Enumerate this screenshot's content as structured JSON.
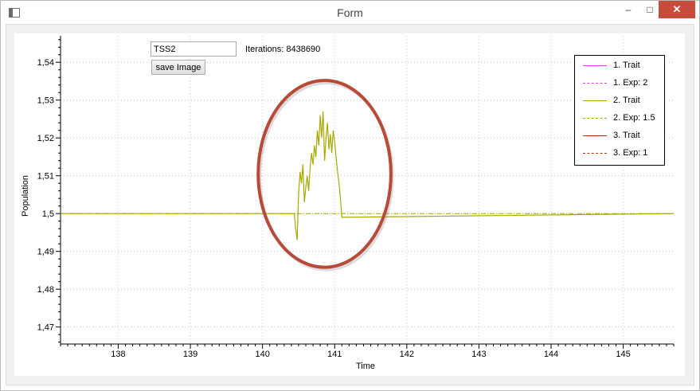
{
  "window": {
    "title": "Form",
    "minimize_glyph": "–",
    "maximize_glyph": "□",
    "close_glyph": "✕"
  },
  "controls": {
    "name_value": "TSS2",
    "iterations_text": "Iterations: 8438690",
    "save_label": "save Image"
  },
  "chart_data": {
    "type": "line",
    "xlabel": "Time",
    "ylabel": "Population",
    "xlim": [
      137.2,
      145.7
    ],
    "ylim": [
      1.4655,
      1.547
    ],
    "x_ticks": [
      138,
      139,
      140,
      141,
      142,
      143,
      144,
      145
    ],
    "y_ticks": [
      1.47,
      1.48,
      1.49,
      1.5,
      1.51,
      1.52,
      1.53,
      1.54
    ],
    "y_tick_labels": [
      "1,47",
      "1,48",
      "1,49",
      "1,5",
      "1,51",
      "1,52",
      "1,53",
      "1,54"
    ],
    "grid": true,
    "legend_position": "top-right",
    "series": [
      {
        "name": "1. Trait",
        "color": "#e040e0",
        "style": "solid"
      },
      {
        "name": "1. Exp: 2",
        "color": "#e040e0",
        "style": "dashdot"
      },
      {
        "name": "2. Trait",
        "color": "#a8a800",
        "style": "solid",
        "x": [
          137.2,
          140.44,
          140.46,
          140.48,
          140.5,
          140.52,
          140.54,
          140.56,
          140.58,
          140.6,
          140.62,
          140.64,
          140.66,
          140.68,
          140.7,
          140.72,
          140.74,
          140.76,
          140.78,
          140.8,
          140.82,
          140.84,
          140.86,
          140.88,
          140.9,
          140.92,
          140.94,
          140.96,
          140.98,
          141.0,
          141.02,
          141.04,
          141.06,
          141.08,
          141.1,
          145.7
        ],
        "y": [
          1.5,
          1.5,
          1.496,
          1.493,
          1.505,
          1.511,
          1.508,
          1.513,
          1.503,
          1.507,
          1.51,
          1.506,
          1.512,
          1.516,
          1.513,
          1.518,
          1.515,
          1.522,
          1.518,
          1.526,
          1.52,
          1.527,
          1.514,
          1.52,
          1.524,
          1.517,
          1.521,
          1.516,
          1.522,
          1.519,
          1.515,
          1.511,
          1.508,
          1.504,
          1.499,
          1.5
        ]
      },
      {
        "name": "2. Exp: 1.5",
        "color": "#a8a800",
        "style": "dashdot",
        "x": [
          137.2,
          145.7
        ],
        "y": [
          1.5,
          1.5
        ]
      },
      {
        "name": "3. Trait",
        "color": "#a03c10",
        "style": "solid"
      },
      {
        "name": "3. Exp: 1",
        "color": "#a03c10",
        "style": "dashdot"
      }
    ],
    "annotation": {
      "shape": "ellipse",
      "color": "#b84a38",
      "center": [
        140.86,
        1.5105
      ],
      "rx_data": 0.92,
      "ry_data": 0.0247
    }
  }
}
